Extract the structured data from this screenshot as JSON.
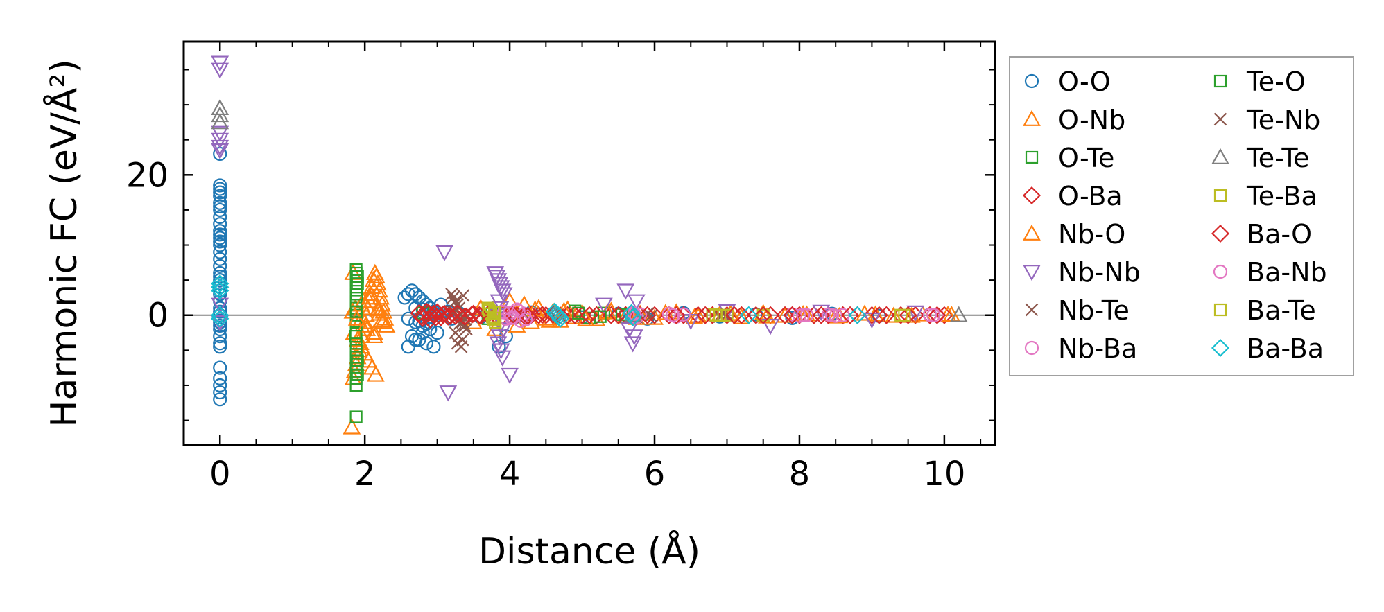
{
  "chart_data": {
    "type": "scatter",
    "title": "",
    "xlabel": "Distance (Å)",
    "ylabel": "Harmonic FC (eV/Å²)",
    "xlim": [
      -0.5,
      10.7
    ],
    "ylim": [
      -18.5,
      39
    ],
    "xticks": [
      0,
      2,
      4,
      6,
      8,
      10
    ],
    "xtick_labels": [
      "0",
      "2",
      "4",
      "6",
      "8",
      "10"
    ],
    "yticks": [
      0,
      20
    ],
    "ytick_labels": [
      "0",
      "20"
    ],
    "zero_line": 0,
    "legend_position": "outside right",
    "series": [
      {
        "name": "O-O",
        "marker": "circle",
        "color": "#1f77b4",
        "x": [
          0,
          0,
          0,
          0,
          0,
          0,
          0,
          0,
          0,
          0,
          0,
          0,
          0,
          0,
          0,
          0,
          0,
          0,
          0,
          0,
          0,
          0,
          0,
          0,
          0,
          0,
          0,
          0,
          0,
          0,
          0,
          0,
          0,
          0,
          0,
          0,
          0,
          0,
          0,
          0,
          2.55,
          2.6,
          2.65,
          2.7,
          2.75,
          2.8,
          2.85,
          2.9,
          2.95,
          3.0,
          2.6,
          2.7,
          2.8,
          2.9,
          3.0,
          2.65,
          2.75,
          2.85,
          2.95,
          2.7,
          2.8,
          2.9,
          2.75,
          2.85,
          2.6,
          2.7,
          2.8,
          2.9,
          3.05,
          3.15,
          3.2,
          3.3,
          3.6,
          3.75,
          3.85,
          3.95,
          4.1,
          4.3,
          4.6,
          5.0,
          5.5,
          5.9,
          6.4,
          6.9,
          7.4,
          7.9,
          8.45,
          9.1,
          9.8
        ],
        "y": [
          -12,
          -11,
          -10,
          -9,
          -7.5,
          -4.5,
          -4,
          -3,
          -2,
          -1,
          0,
          1,
          2,
          3,
          4,
          5,
          5.5,
          6,
          7,
          8,
          9,
          10,
          10.5,
          11,
          11.5,
          12,
          13,
          14,
          15,
          15.5,
          16,
          17,
          17.5,
          18,
          18.5,
          23,
          3.5,
          4.5,
          -1.5,
          0.5,
          2.5,
          3,
          3.5,
          3,
          2.5,
          2,
          1.5,
          1,
          0.5,
          0,
          -0.5,
          -1,
          -1.5,
          -2,
          -2.5,
          -3,
          -3.5,
          -4,
          -4.5,
          1,
          0.8,
          0.2,
          -0.8,
          -1.2,
          -4.5,
          -3.5,
          -2.5,
          -2,
          1.5,
          0.5,
          -0.5,
          0.3,
          -0.3,
          0.5,
          -4.5,
          -3,
          -0.2,
          0.4,
          0.2,
          -0.3,
          0.2,
          -0.5,
          0.3,
          -0.2,
          0.1,
          -0.4,
          0.2,
          -0.1,
          0.1
        ]
      },
      {
        "name": "O-Nb",
        "marker": "triangle-up",
        "color": "#ff7f0e",
        "x": [
          1.82,
          1.84,
          1.86,
          1.88,
          1.9,
          1.92,
          1.94,
          1.96,
          1.98,
          2.0,
          2.02,
          2.04,
          2.06,
          2.08,
          2.1,
          2.12,
          2.14,
          2.16,
          2.18,
          2.2,
          2.22,
          2.24,
          2.26,
          2.28,
          2.3,
          1.85,
          1.9,
          1.95,
          2.0,
          2.05,
          2.1,
          2.15,
          2.2,
          1.87,
          1.93,
          1.98,
          2.03,
          2.08,
          2.13,
          2.18,
          2.23,
          1.84,
          3.5,
          3.6,
          3.8,
          4.0,
          4.1,
          4.2,
          4.3,
          4.4,
          4.5,
          4.6,
          4.7,
          4.8,
          4.9,
          5.0,
          5.2,
          5.4,
          5.6,
          5.8,
          6.0,
          6.3,
          6.6,
          6.9,
          7.2,
          7.5,
          7.8,
          8.1,
          8.5,
          8.9,
          9.3,
          9.7,
          10.1
        ],
        "y": [
          -16,
          -9,
          -8,
          -7,
          -6,
          -5,
          -4,
          -3,
          -2,
          -1,
          0,
          1,
          2,
          3,
          4,
          5,
          6,
          5.5,
          4.5,
          3.5,
          2.5,
          1.5,
          0.5,
          -0.5,
          -1.5,
          -2.5,
          -3.5,
          -4.5,
          -5.5,
          -6.5,
          -7.5,
          -8.5,
          0.2,
          1,
          -1,
          2,
          -2,
          3,
          -3,
          0.8,
          -0.8,
          6,
          -1,
          1,
          -2,
          2,
          -1.5,
          1.5,
          -1,
          1,
          -0.5,
          0.5,
          -0.8,
          0.8,
          -0.3,
          0.3,
          -0.6,
          0.6,
          -0.2,
          0.2,
          -0.4,
          0.4,
          -0.1,
          0.1,
          -0.3,
          0.3,
          -0.1,
          0.1,
          -0.2,
          0.2,
          -0.1,
          0.1,
          0.05
        ]
      },
      {
        "name": "O-Te",
        "marker": "square",
        "color": "#2ca02c",
        "x": [
          1.88,
          1.88,
          1.88,
          1.88,
          1.88,
          1.88,
          1.88,
          1.88,
          1.88,
          1.88,
          1.88,
          1.88,
          1.88,
          1.88,
          1.88,
          1.88,
          1.88,
          1.88,
          1.9,
          1.9,
          1.9,
          1.9,
          2.8,
          3.7,
          3.8,
          4.9,
          5.1,
          5.3,
          5.6,
          6.8
        ],
        "y": [
          -14.5,
          -10,
          -9,
          -8,
          -7,
          -6,
          -5,
          -4,
          -2.5,
          -1,
          0,
          1,
          2,
          3,
          4,
          5,
          6,
          6.5,
          -8.5,
          -6.5,
          4.5,
          5.5,
          0.3,
          -0.5,
          0.4,
          0.6,
          -0.4,
          0.3,
          -0.2,
          0.1
        ]
      },
      {
        "name": "O-Ba",
        "marker": "diamond",
        "color": "#d62728",
        "x": [
          2.75,
          2.8,
          2.85,
          2.9,
          2.95,
          3.0,
          3.05,
          3.1,
          3.15,
          3.2,
          3.25,
          3.3,
          3.4,
          3.5,
          3.6,
          3.7,
          3.8,
          3.9,
          4.0,
          4.1,
          4.2,
          4.3,
          4.4,
          4.5,
          4.6,
          4.7,
          4.8,
          4.9,
          5.0,
          5.2,
          5.4,
          5.6,
          5.8,
          6.0,
          6.2,
          6.4,
          6.6,
          6.8,
          7.0,
          7.2,
          7.4,
          7.6,
          7.8,
          8.0,
          8.2,
          8.4,
          8.6,
          8.8,
          9.0,
          9.2,
          9.4,
          9.6,
          9.8,
          10.0
        ],
        "y": [
          0.3,
          -0.4,
          0.5,
          -0.6,
          0.2,
          0.4,
          -0.3,
          0.2,
          -0.2,
          0.3,
          -0.1,
          0.1,
          -0.2,
          0.2,
          -0.1,
          0.1,
          0,
          -0.1,
          0.1,
          0,
          -0.05,
          0.05,
          0,
          0,
          0.05,
          -0.05,
          0,
          0.02,
          -0.02,
          0,
          0,
          0.02,
          -0.02,
          0,
          0,
          0,
          0,
          0,
          0,
          0,
          0,
          0,
          0,
          0,
          0,
          0,
          0,
          0,
          0,
          0,
          0,
          0,
          0,
          0
        ]
      },
      {
        "name": "Nb-O",
        "marker": "triangle-up",
        "color": "#ff7f0e",
        "x": [
          1.83,
          1.89,
          1.95,
          2.01,
          2.07,
          2.13,
          2.19,
          2.25,
          4.35,
          4.55,
          4.75,
          5.05,
          5.35,
          5.75,
          6.15,
          6.55,
          7.05,
          7.55,
          8.05,
          8.55,
          9.05,
          9.55,
          10.05
        ],
        "y": [
          0.5,
          -0.5,
          1.5,
          -1.5,
          2.5,
          -2.5,
          1,
          -1,
          0.8,
          -0.8,
          0.6,
          -0.6,
          0.4,
          -0.4,
          0.3,
          -0.3,
          0.2,
          -0.2,
          0.15,
          -0.15,
          0.1,
          -0.1,
          0.05
        ]
      },
      {
        "name": "Nb-Nb",
        "marker": "triangle-down",
        "color": "#9467bd",
        "x": [
          0,
          0,
          0,
          0,
          0,
          0,
          0,
          0,
          3.1,
          3.15,
          3.8,
          3.82,
          3.84,
          3.86,
          3.88,
          3.9,
          3.92,
          3.85,
          3.87,
          3.83,
          3.89,
          3.91,
          3.86,
          3.84,
          3.88,
          3.9,
          4.0,
          5.3,
          5.6,
          5.65,
          5.7,
          5.72,
          5.75,
          6.5,
          7.0,
          7.6,
          8.3,
          9.0,
          9.6
        ],
        "y": [
          36,
          35,
          26,
          25,
          24,
          23.5,
          1.5,
          -1,
          9,
          -11,
          6,
          5.5,
          5,
          4.5,
          4,
          3.5,
          3,
          2,
          1,
          0,
          -1,
          -2,
          -3,
          -4,
          -5,
          -6,
          -8.5,
          1.5,
          3.5,
          -2,
          -4,
          -3,
          2,
          -0.8,
          0.6,
          -1.5,
          0.5,
          -0.6,
          0.4
        ]
      },
      {
        "name": "Nb-Te",
        "marker": "x",
        "color": "#8c564b",
        "x": [
          3.2,
          3.22,
          3.25,
          3.28,
          3.3,
          3.32,
          3.35,
          3.38,
          3.4,
          3.25,
          3.3,
          3.35,
          3.28,
          3.33,
          3.22,
          3.38,
          5.9,
          6.9,
          7.0
        ],
        "y": [
          3,
          2.5,
          2,
          1.5,
          1,
          0,
          -1,
          -1.5,
          -2,
          -2.5,
          -3,
          -3.5,
          -4,
          -4.5,
          0.5,
          -0.5,
          0.2,
          -0.2,
          0.1
        ]
      },
      {
        "name": "Nb-Ba",
        "marker": "circle",
        "color": "#e377c2",
        "x": [
          3.9,
          3.95,
          4.0,
          4.05,
          4.1,
          4.15,
          4.2,
          4.25,
          5.7,
          5.75,
          5.8,
          6.2,
          6.3,
          6.4,
          7.9,
          8.0,
          8.1,
          8.4,
          8.5,
          8.6,
          9.8,
          9.9
        ],
        "y": [
          0.5,
          -0.5,
          0.3,
          -0.3,
          0.8,
          -0.8,
          0.2,
          -0.2,
          0.3,
          -0.3,
          0.1,
          0.2,
          -0.2,
          0.1,
          0.1,
          -0.1,
          0,
          0.1,
          -0.1,
          0,
          0.05,
          -0.05
        ]
      },
      {
        "name": "Te-O",
        "marker": "square",
        "color": "#2ca02c",
        "x": [
          1.87,
          1.89,
          1.88,
          3.75,
          4.95,
          5.25,
          5.55
        ],
        "y": [
          -3,
          3,
          0.5,
          0.2,
          0.3,
          -0.2,
          0.1
        ]
      },
      {
        "name": "Te-Nb",
        "marker": "x",
        "color": "#8c564b",
        "x": [
          3.24,
          3.31,
          3.36,
          5.95,
          6.95
        ],
        "y": [
          1.8,
          -1.2,
          2.8,
          -0.1,
          0.15
        ]
      },
      {
        "name": "Te-Te",
        "marker": "triangle-up",
        "color": "#7f7f7f",
        "x": [
          0,
          0,
          0,
          5.7,
          10.2
        ],
        "y": [
          29.5,
          28.5,
          27.5,
          0,
          0
        ]
      },
      {
        "name": "Te-Ba",
        "marker": "square",
        "color": "#bcbd22",
        "x": [
          3.7,
          3.72,
          3.74,
          3.76,
          3.78,
          3.8,
          6.8,
          6.9,
          7.0,
          7.5,
          9.4
        ],
        "y": [
          1,
          0.6,
          0.2,
          -0.2,
          -0.6,
          -1,
          0.1,
          -0.1,
          0,
          0,
          0
        ]
      },
      {
        "name": "Ba-O",
        "marker": "diamond",
        "color": "#d62728",
        "x": [
          2.78,
          2.88,
          2.98,
          3.08,
          3.18,
          3.28,
          3.38,
          3.48,
          3.58,
          4.05,
          4.25,
          4.45,
          4.65,
          5.1,
          5.5,
          5.9,
          6.3,
          6.7,
          7.1,
          7.5,
          7.9,
          8.3,
          8.7,
          9.1,
          9.5,
          9.9
        ],
        "y": [
          -0.2,
          0.3,
          -0.3,
          0.1,
          -0.1,
          0.2,
          -0.2,
          0.1,
          0,
          0.1,
          -0.1,
          0.05,
          -0.05,
          0,
          0,
          0,
          0,
          0,
          0,
          0,
          0,
          0,
          0,
          0,
          0,
          0
        ]
      },
      {
        "name": "Ba-Nb",
        "marker": "circle",
        "color": "#e377c2",
        "x": [
          3.92,
          4.02,
          4.12,
          4.22,
          5.72,
          6.25,
          8.05,
          8.45,
          9.85
        ],
        "y": [
          0.4,
          -0.4,
          0.6,
          -0.6,
          0.2,
          0,
          0,
          0,
          0
        ]
      },
      {
        "name": "Ba-Te",
        "marker": "square",
        "color": "#bcbd22",
        "x": [
          3.71,
          3.77,
          3.79,
          6.85,
          9.45
        ],
        "y": [
          0.8,
          -0.4,
          0.4,
          0,
          0
        ]
      },
      {
        "name": "Ba-Ba",
        "marker": "diamond",
        "color": "#17becf",
        "x": [
          0,
          0,
          0,
          0,
          0,
          4.62,
          4.64,
          4.66,
          4.68,
          4.7,
          5.68,
          5.7,
          7.3,
          8.8
        ],
        "y": [
          4.5,
          4,
          3.5,
          -0.5,
          0,
          0.5,
          0.2,
          0,
          -0.2,
          -0.5,
          0.3,
          -0.3,
          0,
          0
        ]
      }
    ]
  }
}
